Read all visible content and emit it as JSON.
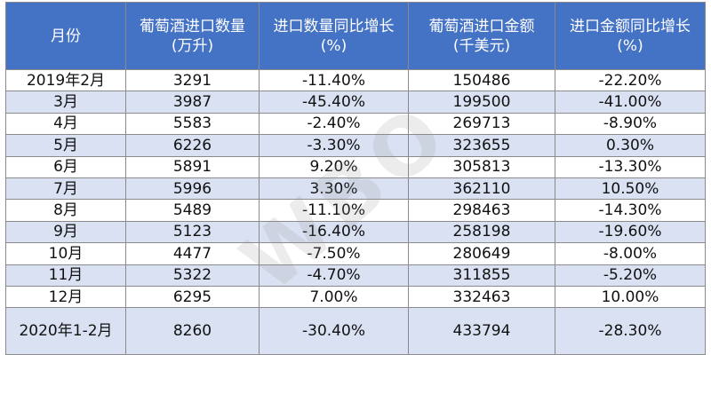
{
  "header": {
    "month": "月份",
    "qty_line1": "葡萄酒进口数量",
    "qty_line2": "(万升)",
    "qty_yoy_line1": "进口数量同比增长",
    "qty_yoy_line2": "(%)",
    "amt_line1": "葡萄酒进口金额",
    "amt_line2": "(千美元)",
    "amt_yoy_line1": "进口金额同比增长",
    "amt_yoy_line2": "(%)"
  },
  "rows": [
    {
      "month": "2019年2月",
      "qty": "3291",
      "qty_yoy": "-11.40%",
      "amt": "150486",
      "amt_yoy": "-22.20%"
    },
    {
      "month": "3月",
      "qty": "3987",
      "qty_yoy": "-45.40%",
      "amt": "199500",
      "amt_yoy": "-41.00%"
    },
    {
      "month": "4月",
      "qty": "5583",
      "qty_yoy": "-2.40%",
      "amt": "269713",
      "amt_yoy": "-8.90%"
    },
    {
      "month": "5月",
      "qty": "6226",
      "qty_yoy": "-3.30%",
      "amt": "323655",
      "amt_yoy": "0.30%"
    },
    {
      "month": "6月",
      "qty": "5891",
      "qty_yoy": "9.20%",
      "amt": "305813",
      "amt_yoy": "-13.30%"
    },
    {
      "month": "7月",
      "qty": "5996",
      "qty_yoy": "3.30%",
      "amt": "362110",
      "amt_yoy": "10.50%"
    },
    {
      "month": "8月",
      "qty": "5489",
      "qty_yoy": "-11.10%",
      "amt": "298463",
      "amt_yoy": "-14.30%"
    },
    {
      "month": "9月",
      "qty": "5123",
      "qty_yoy": "-16.40%",
      "amt": "258198",
      "amt_yoy": "-19.60%"
    },
    {
      "month": "10月",
      "qty": "4477",
      "qty_yoy": "-7.50%",
      "amt": "280649",
      "amt_yoy": "-8.00%"
    },
    {
      "month": "11月",
      "qty": "5322",
      "qty_yoy": "-4.70%",
      "amt": "311855",
      "amt_yoy": "-5.20%"
    },
    {
      "month": "12月",
      "qty": "6295",
      "qty_yoy": "7.00%",
      "amt": "332463",
      "amt_yoy": "10.00%"
    },
    {
      "month": "2020年1-2月",
      "qty": "8260",
      "qty_yoy": "-30.40%",
      "amt": "433794",
      "amt_yoy": "-28.30%"
    }
  ],
  "watermark": "WBO"
}
